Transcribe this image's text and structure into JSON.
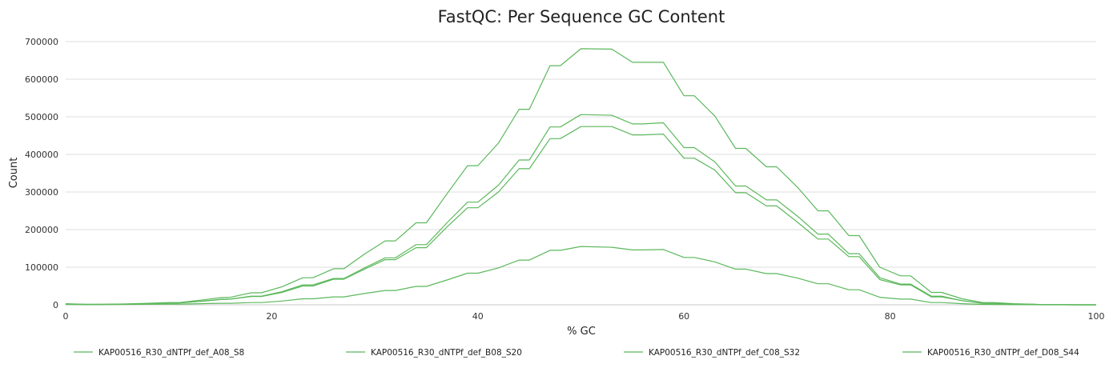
{
  "chart_data": {
    "type": "line",
    "title": "FastQC: Per Sequence GC Content",
    "xlabel": "% GC",
    "ylabel": "Count",
    "xlim": [
      0,
      100
    ],
    "ylim": [
      0,
      700000
    ],
    "x_ticks": [
      "0",
      "20",
      "40",
      "60",
      "80",
      "100"
    ],
    "y_ticks": [
      "0",
      "100000",
      "200000",
      "300000",
      "400000",
      "500000",
      "600000",
      "700000"
    ],
    "grid": "horizontal",
    "legend_position": "bottom",
    "line_color": "#5cb85c",
    "x": [
      0,
      2,
      4,
      6,
      8,
      10,
      11,
      13,
      15,
      16,
      18,
      19,
      21,
      23,
      24,
      26,
      27,
      29,
      31,
      32,
      34,
      35,
      37,
      39,
      40,
      42,
      44,
      45,
      47,
      48,
      50,
      53,
      55,
      56,
      58,
      60,
      61,
      63,
      65,
      66,
      68,
      69,
      71,
      73,
      74,
      76,
      77,
      79,
      81,
      82,
      84,
      85,
      87,
      89,
      90,
      92,
      94,
      95,
      97,
      98,
      100
    ],
    "series": [
      {
        "name": "KAP00516_R30_dNTPf_def_A08_S8",
        "values": [
          2000,
          1000,
          1200,
          2000,
          3000,
          5000,
          5000,
          9000,
          14000,
          15000,
          22000,
          22000,
          33000,
          50000,
          50000,
          68000,
          68000,
          95000,
          120000,
          120000,
          152000,
          152000,
          207000,
          258000,
          258000,
          300000,
          362000,
          362000,
          442000,
          442000,
          474000,
          474000,
          452000,
          452000,
          454000,
          390000,
          390000,
          358000,
          298000,
          298000,
          263000,
          263000,
          220000,
          175000,
          175000,
          128000,
          128000,
          67000,
          53000,
          53000,
          21000,
          21000,
          11000,
          4000,
          4000,
          2000,
          1000,
          500,
          200,
          100,
          0
        ]
      },
      {
        "name": "KAP00516_R30_dNTPf_def_B08_S20",
        "values": [
          3000,
          1000,
          1500,
          2500,
          4000,
          6000,
          6000,
          12000,
          19000,
          20000,
          32000,
          32000,
          48000,
          72000,
          72000,
          96000,
          96000,
          135000,
          170000,
          170000,
          218000,
          218000,
          295000,
          370000,
          370000,
          430000,
          520000,
          520000,
          636000,
          636000,
          681000,
          680000,
          645000,
          645000,
          645000,
          556000,
          556000,
          502000,
          416000,
          416000,
          367000,
          367000,
          313000,
          250000,
          250000,
          184000,
          184000,
          100000,
          77000,
          77000,
          33000,
          33000,
          16000,
          6000,
          6000,
          3000,
          1500,
          500,
          200,
          100,
          0
        ]
      },
      {
        "name": "KAP00516_R30_dNTPf_def_C08_S32",
        "values": [
          2000,
          1000,
          1200,
          2000,
          3000,
          5000,
          5000,
          9000,
          14000,
          15000,
          23000,
          23000,
          35000,
          53000,
          53000,
          70000,
          70000,
          98000,
          125000,
          125000,
          160000,
          160000,
          218000,
          273000,
          273000,
          318000,
          385000,
          385000,
          473000,
          473000,
          506000,
          504000,
          481000,
          481000,
          484000,
          418000,
          418000,
          380000,
          316000,
          316000,
          279000,
          279000,
          236000,
          188000,
          188000,
          136000,
          136000,
          72000,
          55000,
          55000,
          23000,
          23000,
          11000,
          4000,
          4000,
          2000,
          1000,
          500,
          200,
          100,
          0
        ]
      },
      {
        "name": "KAP00516_R30_dNTPf_def_D08_S44",
        "values": [
          1000,
          500,
          600,
          1000,
          1500,
          2000,
          2000,
          3000,
          4000,
          4000,
          6000,
          6000,
          10000,
          16000,
          16000,
          21000,
          21000,
          30000,
          38000,
          38000,
          49000,
          49000,
          66000,
          84000,
          84000,
          98000,
          119000,
          119000,
          145000,
          145000,
          155000,
          153000,
          146000,
          146000,
          147000,
          126000,
          126000,
          114000,
          95000,
          95000,
          83000,
          83000,
          71000,
          56000,
          56000,
          40000,
          40000,
          20000,
          15000,
          15000,
          6000,
          6000,
          3000,
          1000,
          1000,
          500,
          200,
          100,
          50,
          0,
          0
        ]
      }
    ]
  }
}
